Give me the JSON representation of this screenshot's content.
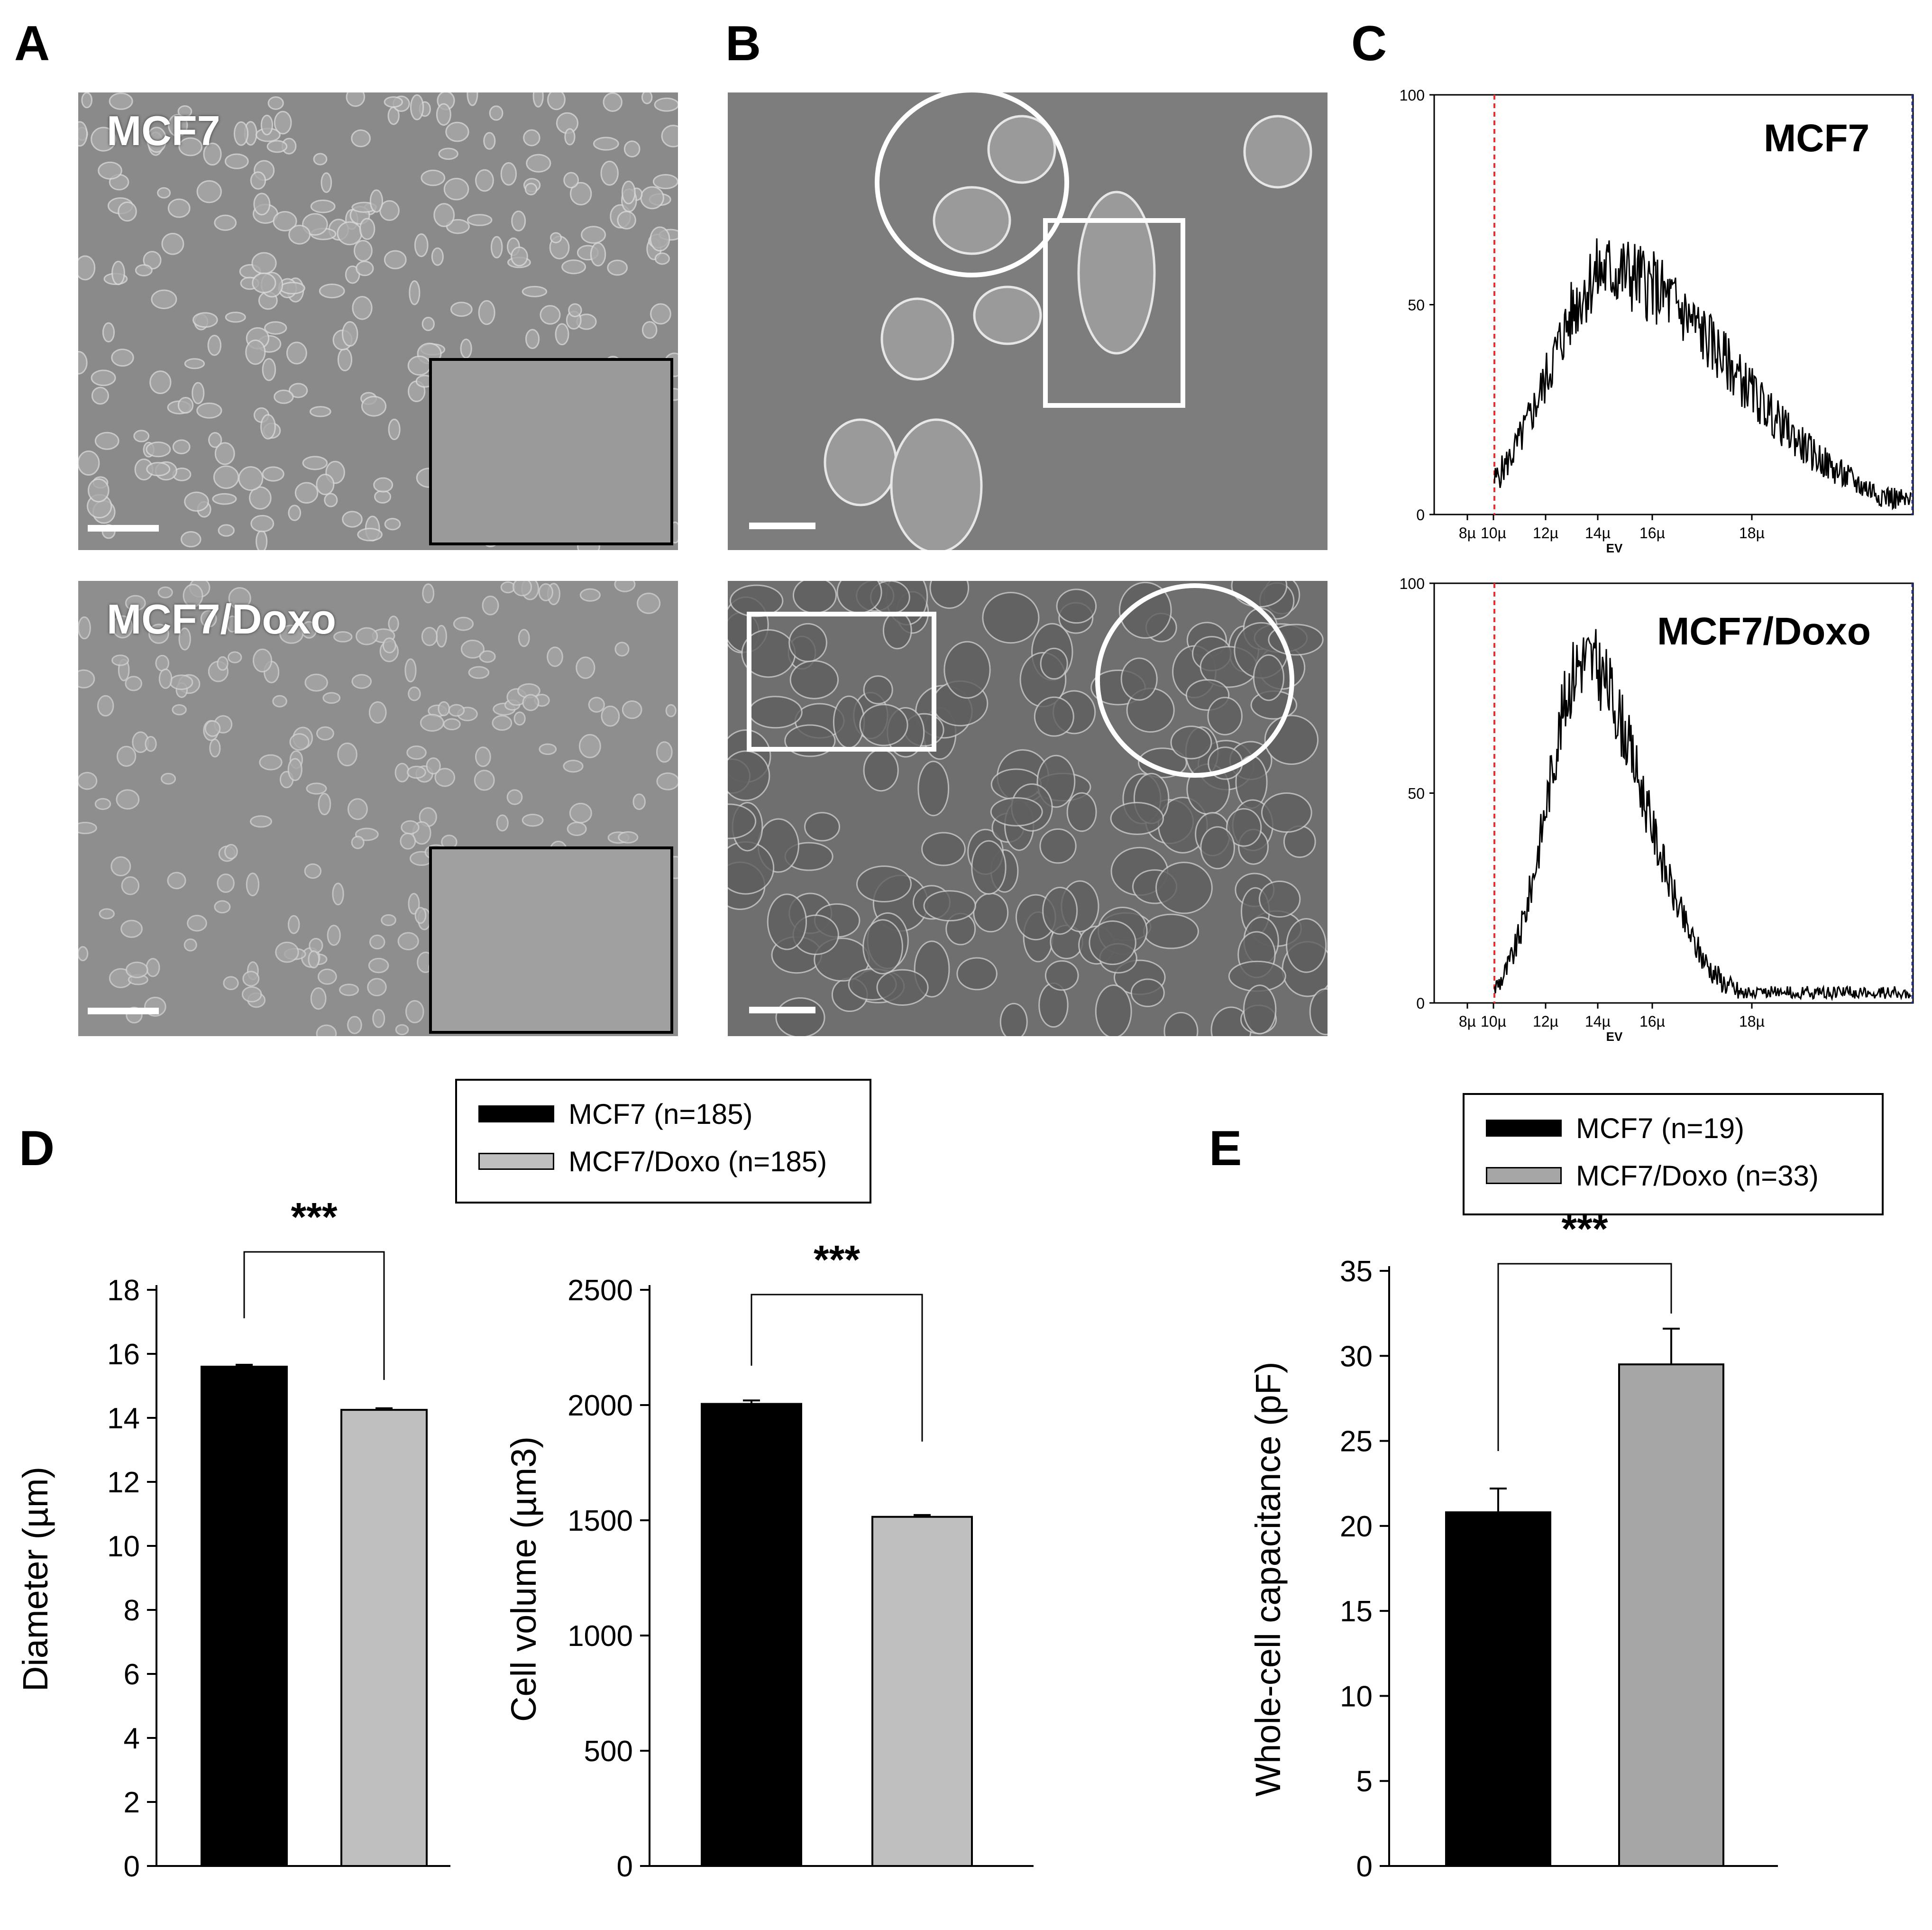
{
  "panels": {
    "A": {
      "letter": "A",
      "top_label": "MCF7",
      "bottom_label": "MCF7/Doxo"
    },
    "B": {
      "letter": "B"
    },
    "C": {
      "letter": "C",
      "top_label": "MCF7",
      "bottom_label": "MCF7/Doxo",
      "y_ticks": [
        "0",
        "50",
        "100"
      ],
      "x_ticks": [
        "8µ",
        "10µ",
        "12µ",
        "14µ",
        "16µ",
        "18µ"
      ],
      "x_axis_label": "EV"
    },
    "D": {
      "letter": "D",
      "legend": [
        "MCF7 (n=185)",
        "MCF7/Doxo (n=185)"
      ],
      "significance": "***"
    },
    "E": {
      "letter": "E",
      "legend": [
        "MCF7 (n=19)",
        "MCF7/Doxo (n=33)"
      ],
      "significance": "***"
    }
  },
  "colors": {
    "mcf7": "#000000",
    "doxo_D": "#bfbfbf",
    "doxo_E": "#a6a6a6",
    "marker_line": "#e03030"
  },
  "chart_data": [
    {
      "id": "C-top",
      "type": "area",
      "title": "MCF7",
      "xlabel": "EV",
      "ylabel": "",
      "x_ticks": [
        "8µ",
        "10µ",
        "12µ",
        "14µ",
        "16µ",
        "18µ"
      ],
      "ylim": [
        0,
        100
      ],
      "yticks": [
        0,
        50,
        100
      ],
      "peak_x": "14µ",
      "peak_y": 75
    },
    {
      "id": "C-bottom",
      "type": "area",
      "title": "MCF7/Doxo",
      "xlabel": "EV",
      "ylabel": "",
      "x_ticks": [
        "8µ",
        "10µ",
        "12µ",
        "14µ",
        "16µ",
        "18µ"
      ],
      "ylim": [
        0,
        100
      ],
      "yticks": [
        0,
        50,
        100
      ],
      "peak_x": "13.5µ",
      "peak_y": 97
    },
    {
      "id": "D-diameter",
      "type": "bar",
      "categories": [
        "MCF7",
        "MCF7/Doxo"
      ],
      "values": [
        15.6,
        14.25
      ],
      "errors": [
        0.06,
        0.05
      ],
      "ylabel": "Diameter (µm)",
      "ylim": [
        0,
        18
      ],
      "yticks": [
        0,
        2,
        4,
        6,
        8,
        10,
        12,
        14,
        16,
        18
      ],
      "significance": "***"
    },
    {
      "id": "D-volume",
      "type": "bar",
      "categories": [
        "MCF7",
        "MCF7/Doxo"
      ],
      "values": [
        2005,
        1515
      ],
      "errors": [
        15,
        8
      ],
      "ylabel": "Cell volume (µm3)",
      "ylim": [
        0,
        2500
      ],
      "yticks": [
        0,
        500,
        1000,
        1500,
        2000,
        2500
      ],
      "significance": "***"
    },
    {
      "id": "E-capacitance",
      "type": "bar",
      "categories": [
        "MCF7",
        "MCF7/Doxo"
      ],
      "values": [
        20.8,
        29.5
      ],
      "errors": [
        1.4,
        2.1
      ],
      "ylabel": "Whole-cell capacitance (pF)",
      "ylim": [
        0,
        35
      ],
      "yticks": [
        0,
        5,
        10,
        15,
        20,
        25,
        30,
        35
      ],
      "significance": "***"
    }
  ]
}
